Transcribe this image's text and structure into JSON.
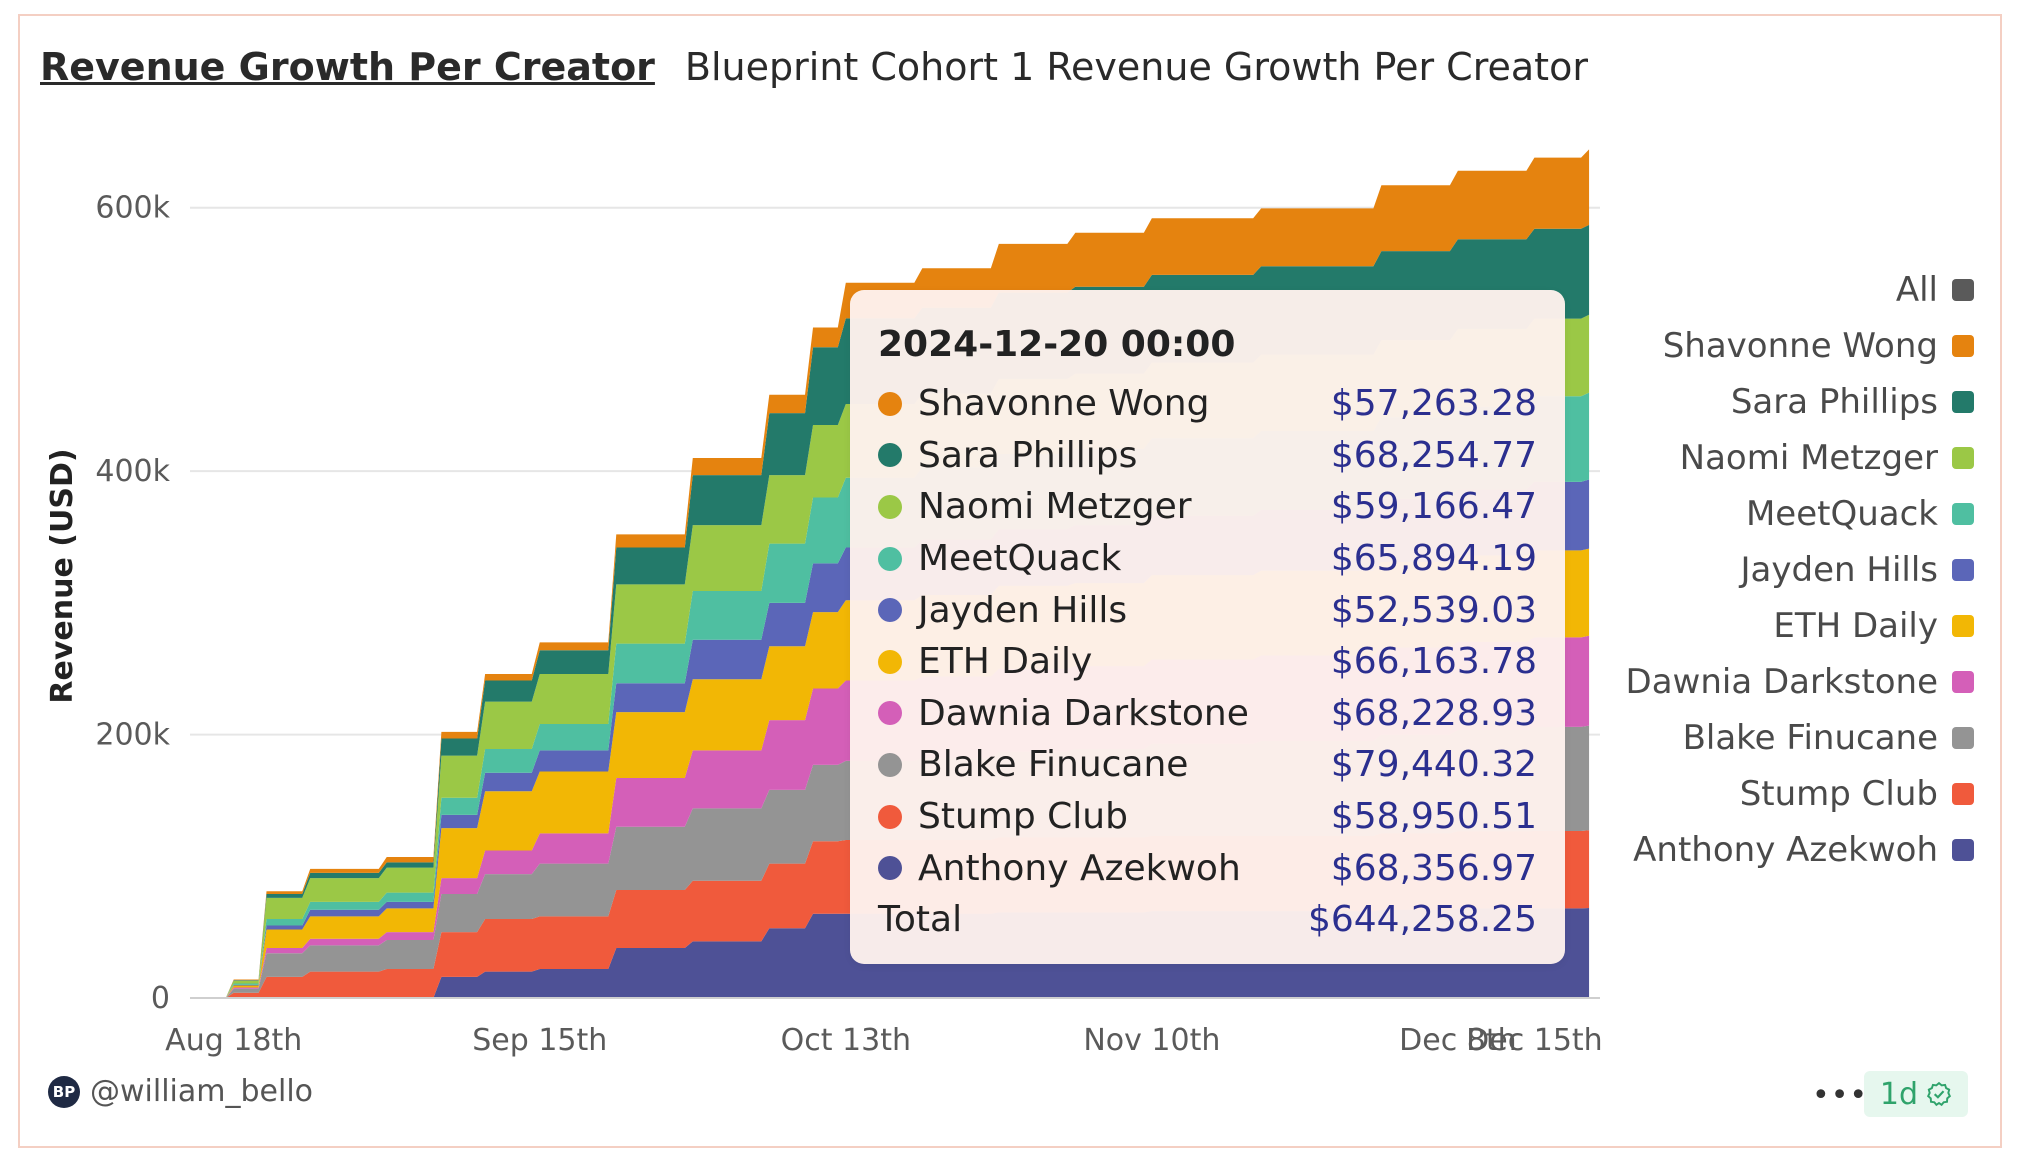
{
  "header": {
    "title": "Revenue Growth Per Creator",
    "subtitle": "Blueprint Cohort 1 Revenue Growth Per Creator"
  },
  "footer": {
    "username": "@william_bello",
    "avatar_initials": "BP",
    "more_label": "•••",
    "badge_label": "1d"
  },
  "tooltip": {
    "date": "2024-12-20 00:00",
    "rows": [
      {
        "name": "Shavonne Wong",
        "value": "$57,263.28",
        "color": "#e5830f"
      },
      {
        "name": "Sara Phillips",
        "value": "$68,254.77",
        "color": "#237a6a"
      },
      {
        "name": "Naomi Metzger",
        "value": "$59,166.47",
        "color": "#9bc846"
      },
      {
        "name": "MeetQuack",
        "value": "$65,894.19",
        "color": "#4fbfa1"
      },
      {
        "name": "Jayden Hills",
        "value": "$52,539.03",
        "color": "#5b66b8"
      },
      {
        "name": "ETH Daily",
        "value": "$66,163.78",
        "color": "#f2b705"
      },
      {
        "name": "Dawnia Darkstone",
        "value": "$68,228.93",
        "color": "#d45fb8"
      },
      {
        "name": "Blake Finucane",
        "value": "$79,440.32",
        "color": "#949494"
      },
      {
        "name": "Stump Club",
        "value": "$58,950.51",
        "color": "#f05a3c"
      },
      {
        "name": "Anthony Azekwoh",
        "value": "$68,356.97",
        "color": "#4e5196"
      }
    ],
    "total_label": "Total",
    "total_value": "$644,258.25"
  },
  "legend": [
    {
      "name": "All",
      "color": "#5a5a5a"
    },
    {
      "name": "Shavonne Wong",
      "color": "#e5830f"
    },
    {
      "name": "Sara Phillips",
      "color": "#237a6a"
    },
    {
      "name": "Naomi Metzger",
      "color": "#9bc846"
    },
    {
      "name": "MeetQuack",
      "color": "#4fbfa1"
    },
    {
      "name": "Jayden Hills",
      "color": "#5b66b8"
    },
    {
      "name": "ETH Daily",
      "color": "#f2b705"
    },
    {
      "name": "Dawnia Darkstone",
      "color": "#d45fb8"
    },
    {
      "name": "Blake Finucane",
      "color": "#949494"
    },
    {
      "name": "Stump Club",
      "color": "#f05a3c"
    },
    {
      "name": "Anthony Azekwoh",
      "color": "#4e5196"
    }
  ],
  "chart_data": {
    "type": "area",
    "stacked": true,
    "title": "Revenue Growth Per Creator",
    "subtitle": "Blueprint Cohort 1 Revenue Growth Per Creator",
    "xlabel": "",
    "ylabel": "Revenue (USD)",
    "ylim": [
      0,
      640000
    ],
    "yticks": [
      0,
      200000,
      400000,
      600000
    ],
    "ytick_labels": [
      "0",
      "200k",
      "400k",
      "600k"
    ],
    "xlim": [
      "2024-08-14",
      "2024-12-21"
    ],
    "xticks": [
      "2024-08-18",
      "2024-09-15",
      "2024-10-13",
      "2024-11-10",
      "2024-12-08",
      "2024-12-15"
    ],
    "xtick_labels": [
      "Aug 18th",
      "Sep 15th",
      "Oct 13th",
      "Nov 10th",
      "Dec 8th",
      "Dec 15th"
    ],
    "grid": true,
    "legend_position": "right",
    "x": [
      "2024-08-14",
      "2024-08-18",
      "2024-08-21",
      "2024-08-25",
      "2024-09-01",
      "2024-09-06",
      "2024-09-10",
      "2024-09-15",
      "2024-09-22",
      "2024-09-29",
      "2024-10-06",
      "2024-10-10",
      "2024-10-13",
      "2024-10-20",
      "2024-10-27",
      "2024-11-03",
      "2024-11-10",
      "2024-11-20",
      "2024-12-01",
      "2024-12-08",
      "2024-12-15",
      "2024-12-20"
    ],
    "series": [
      {
        "name": "Anthony Azekwoh",
        "color": "#4e5196",
        "values": [
          0,
          0,
          0,
          0,
          0,
          16000,
          20000,
          22000,
          38000,
          43000,
          53000,
          64000,
          64000,
          64000,
          65000,
          65000,
          66000,
          66000,
          67000,
          68000,
          68000,
          68357
        ]
      },
      {
        "name": "Stump Club",
        "color": "#f05a3c",
        "values": [
          0,
          4000,
          16000,
          20000,
          22000,
          34000,
          40000,
          40000,
          44000,
          46000,
          49000,
          55000,
          56000,
          56000,
          57000,
          57000,
          57000,
          57000,
          58000,
          58500,
          58800,
          58951
        ]
      },
      {
        "name": "Blake Finucane",
        "color": "#949494",
        "values": [
          0,
          3000,
          18000,
          20000,
          22000,
          29000,
          34000,
          40000,
          48000,
          55000,
          56000,
          58000,
          60000,
          62000,
          65000,
          67000,
          70000,
          72000,
          75000,
          77000,
          79000,
          79440
        ]
      },
      {
        "name": "Dawnia Darkstone",
        "color": "#d45fb8",
        "values": [
          0,
          1000,
          4000,
          5000,
          6000,
          12000,
          18000,
          23000,
          37000,
          44000,
          53000,
          58000,
          61000,
          62000,
          63000,
          63000,
          64000,
          65000,
          66000,
          67000,
          68000,
          68229
        ]
      },
      {
        "name": "ETH Daily",
        "color": "#f2b705",
        "values": [
          0,
          1500,
          14000,
          17000,
          18000,
          38000,
          45000,
          47000,
          50000,
          54000,
          56000,
          58000,
          61000,
          62000,
          63000,
          63000,
          64000,
          64500,
          65000,
          65500,
          66000,
          66164
        ]
      },
      {
        "name": "Jayden Hills",
        "color": "#5b66b8",
        "values": [
          0,
          500,
          3000,
          5000,
          5000,
          10000,
          14000,
          16000,
          22000,
          30000,
          33000,
          37000,
          40000,
          42000,
          43000,
          44000,
          45000,
          46000,
          48000,
          50000,
          52000,
          52539
        ]
      },
      {
        "name": "MeetQuack",
        "color": "#4fbfa1",
        "values": [
          0,
          1000,
          5000,
          6000,
          7000,
          13000,
          18000,
          20000,
          30000,
          37000,
          45000,
          50000,
          53000,
          55000,
          57000,
          58000,
          59000,
          60000,
          62000,
          63000,
          65000,
          65894
        ]
      },
      {
        "name": "Naomi Metzger",
        "color": "#9bc846",
        "values": [
          0,
          2000,
          16000,
          18000,
          19000,
          32000,
          36000,
          38000,
          45000,
          50000,
          52000,
          55000,
          56000,
          56000,
          57000,
          57000,
          57500,
          58000,
          58500,
          59000,
          59000,
          59166
        ]
      },
      {
        "name": "Sara Phillips",
        "color": "#237a6a",
        "values": [
          0,
          500,
          3000,
          4000,
          4000,
          13000,
          16000,
          18000,
          28000,
          38000,
          47000,
          59000,
          65000,
          65000,
          65500,
          66000,
          66500,
          67000,
          67500,
          68000,
          68200,
          68255
        ]
      },
      {
        "name": "Shavonne Wong",
        "color": "#e5830f",
        "values": [
          0,
          500,
          2000,
          3000,
          4000,
          5000,
          5000,
          6000,
          10000,
          13000,
          14000,
          15000,
          27000,
          30000,
          37000,
          41000,
          43000,
          44000,
          50000,
          52000,
          54000,
          57263
        ]
      }
    ]
  }
}
